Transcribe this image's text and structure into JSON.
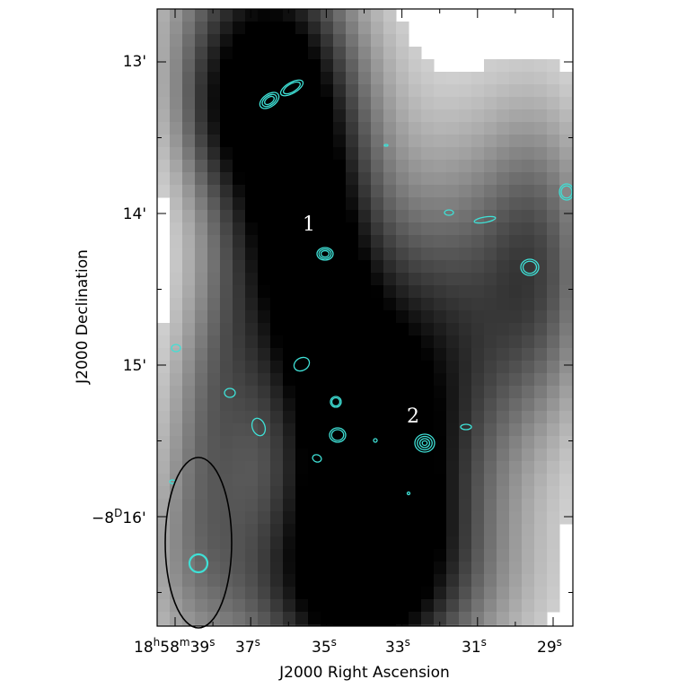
{
  "figure": {
    "x_axis_title": "J2000 Right Ascension",
    "y_axis_title": "J2000 Declination",
    "x_tick_labels": [
      {
        "text": "18h58m39s",
        "parts": [
          "18",
          "h",
          "58",
          "m",
          "39",
          "s"
        ]
      },
      {
        "text": "37s",
        "parts": [
          "37",
          "s"
        ]
      },
      {
        "text": "35s",
        "parts": [
          "35",
          "s"
        ]
      },
      {
        "text": "33s",
        "parts": [
          "33",
          "s"
        ]
      },
      {
        "text": "31s",
        "parts": [
          "31",
          "s"
        ]
      },
      {
        "text": "29s",
        "parts": [
          "29",
          "s"
        ]
      }
    ],
    "y_tick_labels": [
      {
        "text": "13'"
      },
      {
        "text": "14'"
      },
      {
        "text": "15'"
      },
      {
        "text": "−8D16'",
        "parts": [
          "−8",
          "D",
          "16'"
        ]
      }
    ],
    "source_labels": [
      "1",
      "2"
    ],
    "colors": {
      "contour": "#3fe0d6",
      "beam": "#000000",
      "frame": "#000000"
    }
  }
}
